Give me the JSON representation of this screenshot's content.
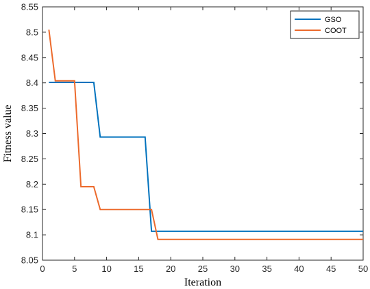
{
  "chart_data": {
    "type": "line",
    "xlabel": "Iteration",
    "ylabel": "Fitness value",
    "xlim": [
      0,
      50
    ],
    "ylim": [
      8.05,
      8.55
    ],
    "x_ticks": [
      0,
      5,
      10,
      15,
      20,
      25,
      30,
      35,
      40,
      45,
      50
    ],
    "x_tick_labels": [
      "0",
      "5",
      "10",
      "15",
      "20",
      "25",
      "30",
      "35",
      "40",
      "45",
      "50"
    ],
    "y_ticks": [
      8.05,
      8.1,
      8.15,
      8.2,
      8.25,
      8.3,
      8.35,
      8.4,
      8.45,
      8.5,
      8.55
    ],
    "y_tick_labels": [
      "8.05",
      "8.1",
      "8.15",
      "8.2",
      "8.25",
      "8.3",
      "8.35",
      "8.4",
      "8.45",
      "8.5",
      "8.55"
    ],
    "grid": false,
    "legend_position": "top-right",
    "series": [
      {
        "name": "GSO",
        "color": "#0072BD",
        "x": [
          1,
          8,
          9,
          16,
          17,
          50
        ],
        "y": [
          8.401,
          8.401,
          8.293,
          8.293,
          8.107,
          8.107
        ]
      },
      {
        "name": "COOT",
        "color": "#EC6A2C",
        "x": [
          1,
          2,
          5,
          6,
          8,
          9,
          17,
          18,
          50
        ],
        "y": [
          8.505,
          8.404,
          8.404,
          8.195,
          8.195,
          8.15,
          8.15,
          8.091,
          8.091
        ]
      }
    ]
  }
}
